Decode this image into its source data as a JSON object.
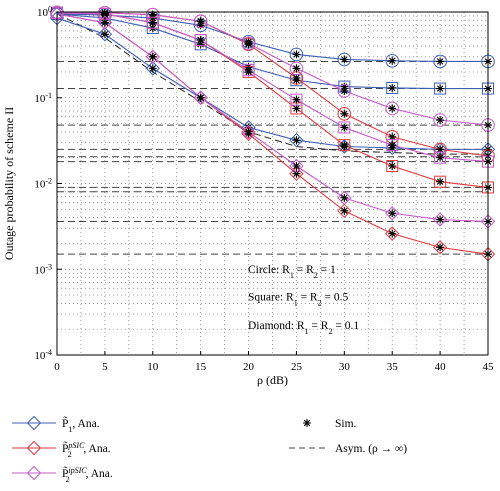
{
  "chart_data": {
    "type": "line",
    "title": "",
    "xlabel": "ρ (dB)",
    "ylabel": "Outage probability of scheme II",
    "xlim": [
      0,
      45
    ],
    "ylim": [
      0.0001,
      1
    ],
    "yscale": "log",
    "grid": true,
    "x_ticks": [
      0,
      5,
      10,
      15,
      20,
      25,
      30,
      35,
      40,
      45
    ],
    "x_tick_labels": [
      "0",
      "5",
      "10",
      "15",
      "20",
      "25",
      "30",
      "35",
      "40",
      "45"
    ],
    "y_ticks": [
      0.0001,
      0.001,
      0.01,
      0.1,
      1
    ],
    "y_tick_labels": [
      {
        "base": "10",
        "exp": "-4"
      },
      {
        "base": "10",
        "exp": "-3"
      },
      {
        "base": "10",
        "exp": "-2"
      },
      {
        "base": "10",
        "exp": "-1"
      },
      {
        "base": "10",
        "exp": "0"
      }
    ],
    "colors": {
      "p1": "#3c5fb4",
      "p2": "#e0393e",
      "p2ip": "#c35cc8",
      "sim": "#000000",
      "asym": "#444444"
    },
    "x": [
      0,
      5,
      10,
      15,
      20,
      25,
      30,
      35,
      40,
      45
    ],
    "series": [
      {
        "group": "p1",
        "marker": "circle",
        "values": [
          0.95,
          0.92,
          0.85,
          0.7,
          0.45,
          0.32,
          0.28,
          0.27,
          0.265,
          0.265
        ]
      },
      {
        "group": "p1",
        "marker": "square",
        "values": [
          0.95,
          0.85,
          0.65,
          0.42,
          0.23,
          0.16,
          0.135,
          0.13,
          0.128,
          0.128
        ]
      },
      {
        "group": "p1",
        "marker": "diamond",
        "values": [
          0.85,
          0.55,
          0.22,
          0.1,
          0.045,
          0.032,
          0.027,
          0.026,
          0.025,
          0.025
        ]
      },
      {
        "group": "p2",
        "marker": "circle",
        "values": [
          0.99,
          0.98,
          0.93,
          0.78,
          0.42,
          0.17,
          0.065,
          0.035,
          0.025,
          0.021
        ]
      },
      {
        "group": "p2",
        "marker": "square",
        "values": [
          0.98,
          0.95,
          0.75,
          0.47,
          0.2,
          0.075,
          0.028,
          0.016,
          0.0105,
          0.009
        ]
      },
      {
        "group": "p2",
        "marker": "diamond",
        "values": [
          0.95,
          0.75,
          0.3,
          0.1,
          0.038,
          0.013,
          0.0048,
          0.0026,
          0.0018,
          0.0015
        ]
      },
      {
        "group": "p2ip",
        "marker": "circle",
        "values": [
          0.99,
          0.98,
          0.93,
          0.78,
          0.43,
          0.22,
          0.12,
          0.075,
          0.055,
          0.048
        ]
      },
      {
        "group": "p2ip",
        "marker": "square",
        "values": [
          0.98,
          0.95,
          0.75,
          0.47,
          0.21,
          0.095,
          0.045,
          0.028,
          0.02,
          0.018
        ]
      },
      {
        "group": "p2ip",
        "marker": "diamond",
        "values": [
          0.95,
          0.75,
          0.3,
          0.1,
          0.04,
          0.016,
          0.0068,
          0.0045,
          0.0038,
          0.0036
        ]
      }
    ],
    "sim_x": [
      5,
      10,
      15,
      20,
      25,
      30,
      35,
      40,
      45
    ],
    "asymptotes": [
      0.265,
      0.128,
      0.048,
      0.025,
      0.0205,
      0.018,
      0.009,
      0.008,
      0.0036,
      0.0015
    ],
    "black_dashed": {
      "x": [
        0,
        5,
        10,
        15,
        20,
        25,
        30,
        35,
        40,
        45
      ],
      "values": [
        0.95,
        0.5,
        0.2,
        0.09,
        0.04,
        0.027,
        0.024,
        0.023,
        0.022,
        0.022
      ]
    },
    "annotations": [
      {
        "label": "Circle: R",
        "s1": "1",
        "mid": " = R",
        "s2": "2",
        "tail": " = 1"
      },
      {
        "label": "Square: R",
        "s1": "1",
        "mid": " = R",
        "s2": "2",
        "tail": " = 0.5"
      },
      {
        "label": "Diamond: R",
        "s1": "1",
        "mid": " = R",
        "s2": "2",
        "tail": " = 0.1"
      }
    ],
    "legend": [
      {
        "key": "p1",
        "symbol": "diamond",
        "main": "P̃",
        "sub": "1",
        "sup": "",
        "tail": ", Ana."
      },
      {
        "key": "p2",
        "symbol": "diamond",
        "main": "P̃",
        "sub": "2",
        "sup": "pSIC",
        "tail": ", Ana."
      },
      {
        "key": "p2ip",
        "symbol": "diamond",
        "main": "P̃",
        "sub": "2",
        "sup": "ipSIC",
        "tail": ", Ana."
      },
      {
        "key": "sim",
        "symbol": "star",
        "main": "Sim.",
        "sub": "",
        "sup": "",
        "tail": ""
      },
      {
        "key": "asym",
        "symbol": "dash",
        "main": "Asym. (ρ → ∞)",
        "sub": "",
        "sup": "",
        "tail": ""
      }
    ]
  }
}
